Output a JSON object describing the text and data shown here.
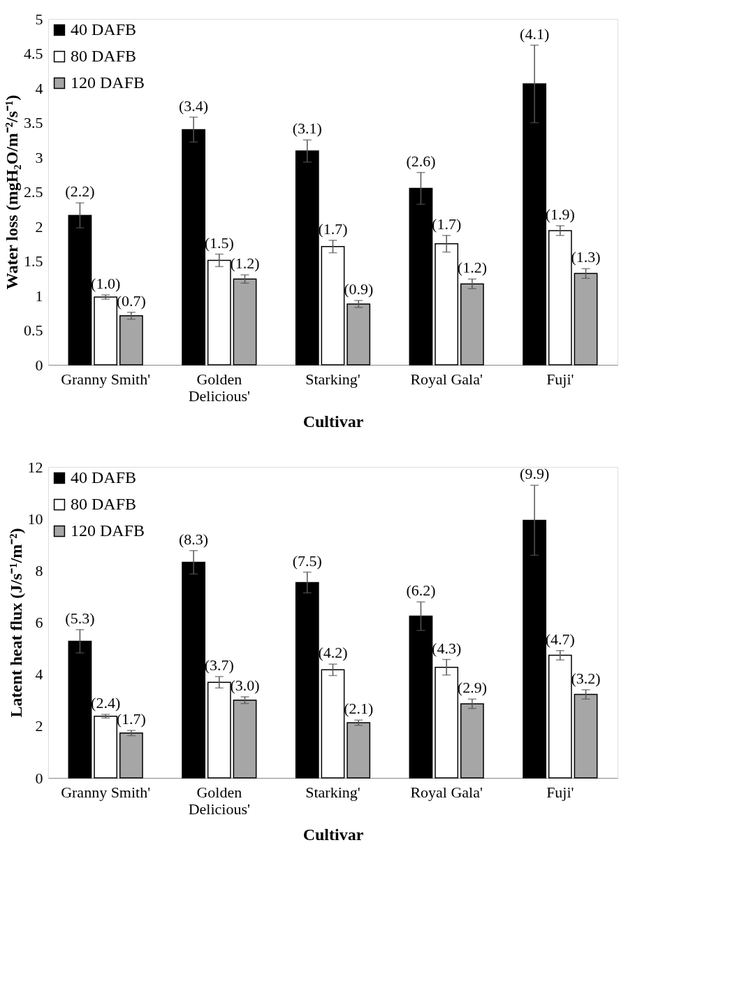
{
  "chart_data": [
    {
      "type": "bar",
      "xlabel": "Cultivar",
      "ylabel": "Water loss (mgH₂O/m⁻²/s⁻¹)",
      "categories": [
        "Granny Smith'",
        "Golden Delicious'",
        "Starking'",
        "Royal Gala'",
        "Fuji'"
      ],
      "series": [
        {
          "name": "40 DAFB",
          "color": "#000000",
          "values": [
            2.16,
            3.4,
            3.09,
            2.55,
            4.06
          ],
          "errors": [
            0.18,
            0.18,
            0.16,
            0.23,
            0.56
          ],
          "value_labels": [
            "(2.2)",
            "(3.4)",
            "(3.1)",
            "(2.6)",
            "(4.1)"
          ]
        },
        {
          "name": "80 DAFB",
          "color": "#ffffff",
          "values": [
            0.98,
            1.51,
            1.71,
            1.75,
            1.94
          ],
          "errors": [
            0.03,
            0.09,
            0.09,
            0.12,
            0.07
          ],
          "value_labels": [
            "(1.0)",
            "(1.5)",
            "(1.7)",
            "(1.7)",
            "(1.9)"
          ]
        },
        {
          "name": "120 DAFB",
          "color": "#a6a6a6",
          "values": [
            0.71,
            1.24,
            0.88,
            1.17,
            1.32
          ],
          "errors": [
            0.05,
            0.06,
            0.05,
            0.07,
            0.07
          ],
          "value_labels": [
            "(0.7)",
            "(1.2)",
            "(0.9)",
            "(1.2)",
            "(1.3)"
          ]
        }
      ],
      "ylim": [
        0,
        5
      ],
      "yticks": [
        0,
        0.5,
        1,
        1.5,
        2,
        2.5,
        3,
        3.5,
        4,
        4.5,
        5
      ],
      "grid": false,
      "legend": "top left"
    },
    {
      "type": "bar",
      "xlabel": "Cultivar",
      "ylabel": "Latent heat flux (J/s⁻¹/m⁻²)",
      "categories": [
        "Granny Smith'",
        "Golden Delicious'",
        "Starking'",
        "Royal Gala'",
        "Fuji'"
      ],
      "series": [
        {
          "name": "40 DAFB",
          "color": "#000000",
          "values": [
            5.27,
            8.32,
            7.54,
            6.24,
            9.94
          ],
          "errors": [
            0.45,
            0.45,
            0.4,
            0.55,
            1.35
          ],
          "value_labels": [
            "(5.3)",
            "(8.3)",
            "(7.5)",
            "(6.2)",
            "(9.9)"
          ]
        },
        {
          "name": "80 DAFB",
          "color": "#ffffff",
          "values": [
            2.38,
            3.69,
            4.17,
            4.27,
            4.73
          ],
          "errors": [
            0.07,
            0.22,
            0.22,
            0.3,
            0.18
          ],
          "value_labels": [
            "(2.4)",
            "(3.7)",
            "(4.2)",
            "(4.3)",
            "(4.7)"
          ]
        },
        {
          "name": "120 DAFB",
          "color": "#a6a6a6",
          "values": [
            1.73,
            3.0,
            2.13,
            2.86,
            3.22
          ],
          "errors": [
            0.1,
            0.13,
            0.1,
            0.18,
            0.18
          ],
          "value_labels": [
            "(1.7)",
            "(3.0)",
            "(2.1)",
            "(2.9)",
            "(3.2)"
          ]
        }
      ],
      "ylim": [
        0,
        12
      ],
      "yticks": [
        0,
        2,
        4,
        6,
        8,
        10,
        12
      ],
      "grid": false,
      "legend": "top left"
    }
  ]
}
